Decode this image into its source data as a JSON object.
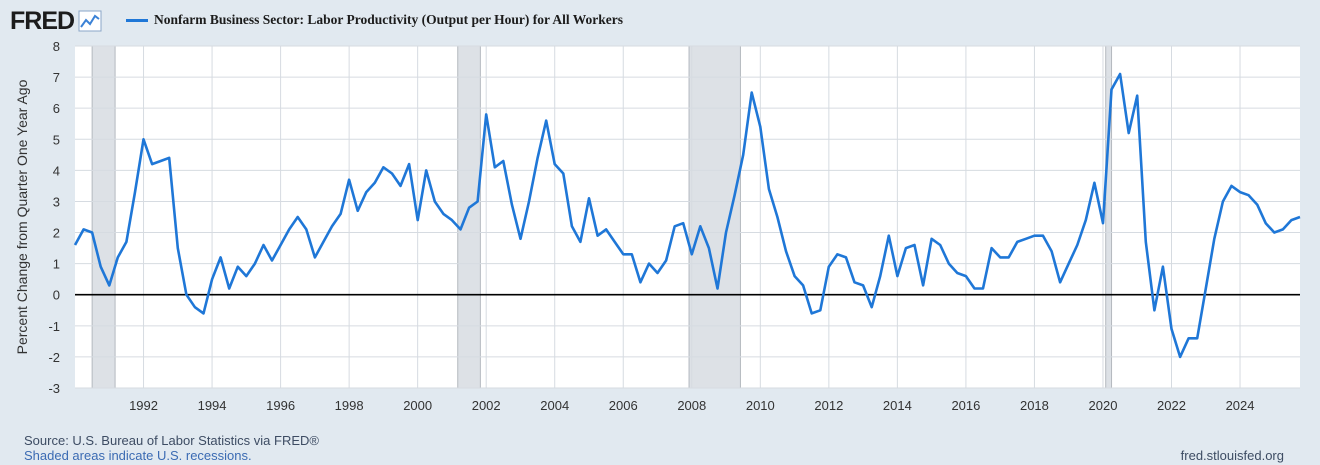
{
  "brand": {
    "logo_text": "FRED",
    "logo_icon": "chart-line-icon"
  },
  "legend": {
    "label": "Nonfarm Business Sector: Labor Productivity (Output per Hour) for All Workers"
  },
  "footer": {
    "source": "Source: U.S. Bureau of Labor Statistics via FRED®",
    "note": "Shaded areas indicate U.S. recessions.",
    "site": "fred.stlouisfed.org"
  },
  "colors": {
    "series": "#1f77d7",
    "recession": "#dde1e6",
    "grid": "#d6dbe1",
    "zero": "#000000",
    "background": "#e1e9f0",
    "plot": "#ffffff"
  },
  "chart_data": {
    "type": "line",
    "ylabel": "Percent Change from Quarter One Year Ago",
    "xlabel": "",
    "xlim": [
      1990.0,
      2025.75
    ],
    "ylim": [
      -3,
      8
    ],
    "yticks": [
      "8",
      "7",
      "6",
      "5",
      "4",
      "3",
      "2",
      "1",
      "0",
      "-1",
      "-2",
      "-3"
    ],
    "xticks": [
      "1992",
      "1994",
      "1996",
      "1998",
      "2000",
      "2002",
      "2004",
      "2006",
      "2008",
      "2010",
      "2012",
      "2014",
      "2016",
      "2018",
      "2020",
      "2022",
      "2024"
    ],
    "recessions": [
      [
        1990.5,
        1991.17
      ],
      [
        2001.17,
        2001.83
      ],
      [
        2007.92,
        2009.42
      ],
      [
        2020.08,
        2020.25
      ]
    ],
    "series": [
      {
        "name": "Nonfarm Business Sector: Labor Productivity (Output per Hour) for All Workers",
        "x": [
          1990.0,
          1990.25,
          1990.5,
          1990.75,
          1991.0,
          1991.25,
          1991.5,
          1991.75,
          1992.0,
          1992.25,
          1992.5,
          1992.75,
          1993.0,
          1993.25,
          1993.5,
          1993.75,
          1994.0,
          1994.25,
          1994.5,
          1994.75,
          1995.0,
          1995.25,
          1995.5,
          1995.75,
          1996.0,
          1996.25,
          1996.5,
          1996.75,
          1997.0,
          1997.25,
          1997.5,
          1997.75,
          1998.0,
          1998.25,
          1998.5,
          1998.75,
          1999.0,
          1999.25,
          1999.5,
          1999.75,
          2000.0,
          2000.25,
          2000.5,
          2000.75,
          2001.0,
          2001.25,
          2001.5,
          2001.75,
          2002.0,
          2002.25,
          2002.5,
          2002.75,
          2003.0,
          2003.25,
          2003.5,
          2003.75,
          2004.0,
          2004.25,
          2004.5,
          2004.75,
          2005.0,
          2005.25,
          2005.5,
          2005.75,
          2006.0,
          2006.25,
          2006.5,
          2006.75,
          2007.0,
          2007.25,
          2007.5,
          2007.75,
          2008.0,
          2008.25,
          2008.5,
          2008.75,
          2009.0,
          2009.25,
          2009.5,
          2009.75,
          2010.0,
          2010.25,
          2010.5,
          2010.75,
          2011.0,
          2011.25,
          2011.5,
          2011.75,
          2012.0,
          2012.25,
          2012.5,
          2012.75,
          2013.0,
          2013.25,
          2013.5,
          2013.75,
          2014.0,
          2014.25,
          2014.5,
          2014.75,
          2015.0,
          2015.25,
          2015.5,
          2015.75,
          2016.0,
          2016.25,
          2016.5,
          2016.75,
          2017.0,
          2017.25,
          2017.5,
          2017.75,
          2018.0,
          2018.25,
          2018.5,
          2018.75,
          2019.0,
          2019.25,
          2019.5,
          2019.75,
          2020.0,
          2020.25,
          2020.5,
          2020.75,
          2021.0,
          2021.25,
          2021.5,
          2021.75,
          2022.0,
          2022.25,
          2022.5,
          2022.75,
          2023.0,
          2023.25,
          2023.5,
          2023.75,
          2024.0,
          2024.25,
          2024.5,
          2024.75,
          2025.0,
          2025.25,
          2025.5,
          2025.75
        ],
        "values": [
          1.6,
          2.1,
          2.0,
          0.9,
          0.3,
          1.2,
          1.7,
          3.3,
          5.0,
          4.2,
          4.3,
          4.4,
          1.5,
          0.0,
          -0.4,
          -0.6,
          0.5,
          1.2,
          0.2,
          0.9,
          0.6,
          1.0,
          1.6,
          1.1,
          1.6,
          2.1,
          2.5,
          2.1,
          1.2,
          1.7,
          2.2,
          2.6,
          3.7,
          2.7,
          3.3,
          3.6,
          4.1,
          3.9,
          3.5,
          4.2,
          2.4,
          4.0,
          3.0,
          2.6,
          2.4,
          2.1,
          2.8,
          3.0,
          5.8,
          4.1,
          4.3,
          2.9,
          1.8,
          3.0,
          4.4,
          5.6,
          4.2,
          3.9,
          2.2,
          1.7,
          3.1,
          1.9,
          2.1,
          1.7,
          1.3,
          1.3,
          0.4,
          1.0,
          0.7,
          1.1,
          2.2,
          2.3,
          1.3,
          2.2,
          1.5,
          0.2,
          2.0,
          3.2,
          4.5,
          6.5,
          5.4,
          3.4,
          2.5,
          1.4,
          0.6,
          0.3,
          -0.6,
          -0.5,
          0.9,
          1.3,
          1.2,
          0.4,
          0.3,
          -0.4,
          0.6,
          1.9,
          0.6,
          1.5,
          1.6,
          0.3,
          1.8,
          1.6,
          1.0,
          0.7,
          0.6,
          0.2,
          0.2,
          1.5,
          1.2,
          1.2,
          1.7,
          1.8,
          1.9,
          1.9,
          1.4,
          0.4,
          1.0,
          1.6,
          2.4,
          3.6,
          2.3,
          6.6,
          7.1,
          5.2,
          6.4,
          1.7,
          -0.5,
          0.9,
          -1.1,
          -2.0,
          -1.4,
          -1.4,
          0.2,
          1.8,
          3.0,
          3.5,
          3.3,
          3.2,
          2.9,
          2.3,
          2.0,
          2.1,
          2.4,
          2.5
        ]
      }
    ]
  }
}
